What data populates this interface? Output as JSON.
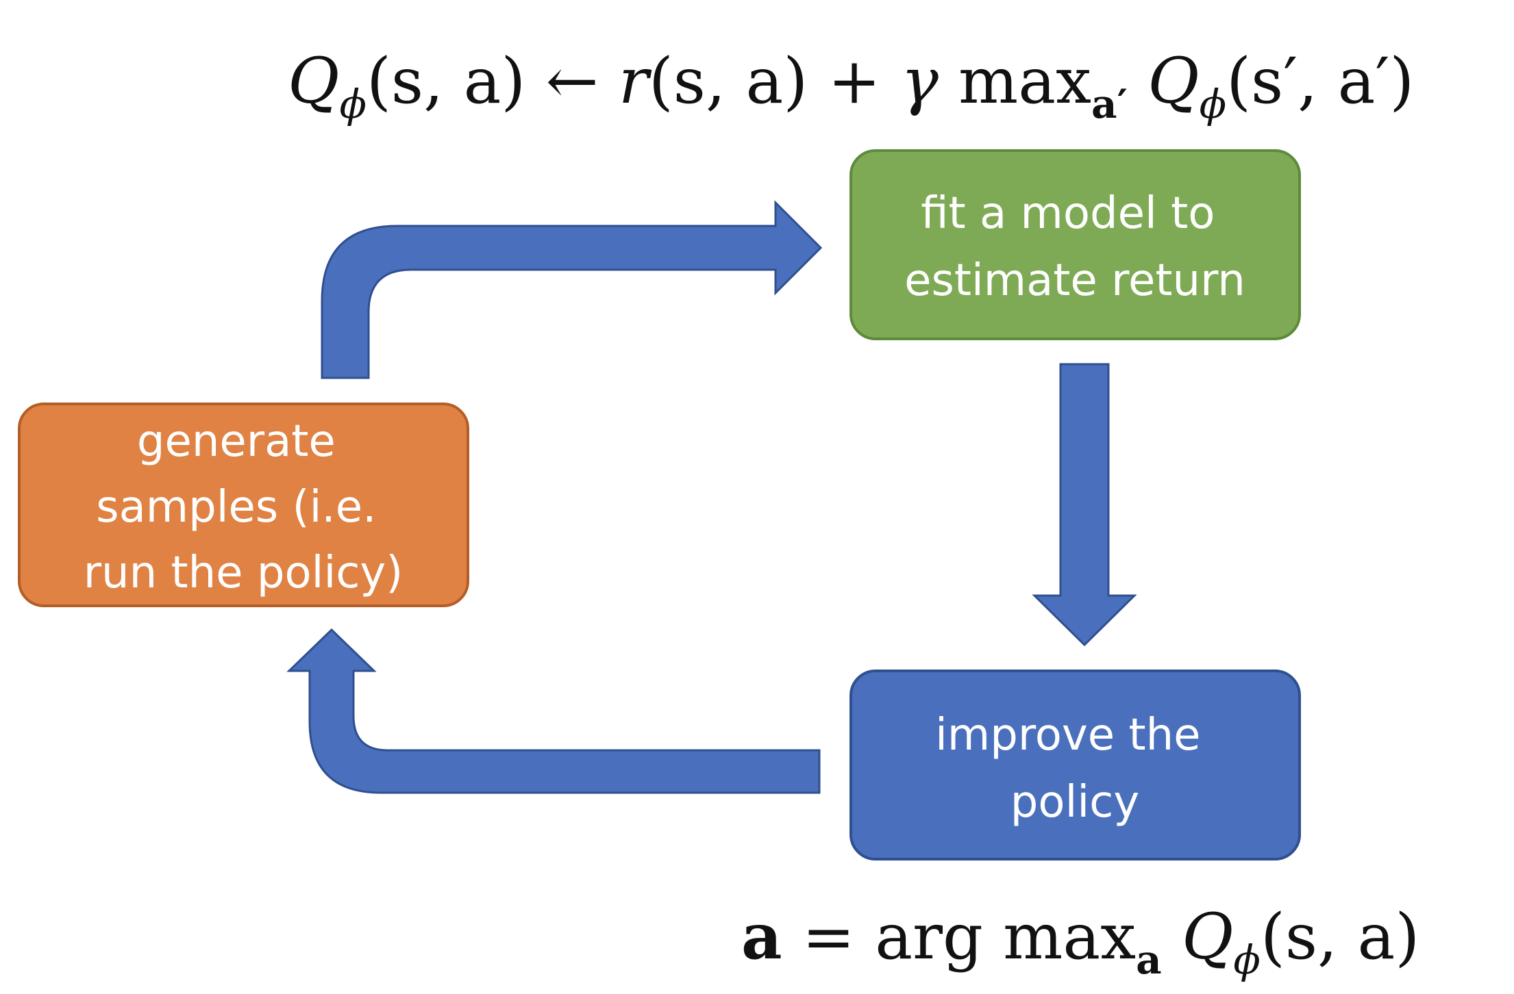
{
  "steps": {
    "fit_model": {
      "lines": [
        "fit a model to",
        "estimate return"
      ],
      "fill": "#7FAA55",
      "stroke": "#5E8A3C"
    },
    "improve_policy": {
      "lines": [
        "improve the",
        "policy"
      ],
      "fill": "#4A70BD",
      "stroke": "#2F4F8F"
    },
    "generate_samples": {
      "lines": [
        "generate",
        "samples (i.e.",
        "run the policy)"
      ],
      "fill": "#E08244",
      "stroke": "#B35E27"
    }
  },
  "arrow_color": "#4A70BD",
  "arrow_stroke": "#2F4F8F",
  "formulas": {
    "q_update": {
      "parts": {
        "q": "Q",
        "phi": "ϕ",
        "lhs_args": "(s, a)",
        "arrow": " ← ",
        "r": "r",
        "r_args": "(s, a)",
        "plus": " + ",
        "gamma": "γ",
        "max": " max",
        "max_sub": "a′",
        "q2": " Q",
        "phi2": "ϕ",
        "rhs_args": "(s′, a′)"
      }
    },
    "policy": {
      "parts": {
        "a": "a",
        "eq": " = arg max",
        "max_sub": "a",
        "q": " Q",
        "phi": "ϕ",
        "args": "(s, a)"
      }
    }
  }
}
